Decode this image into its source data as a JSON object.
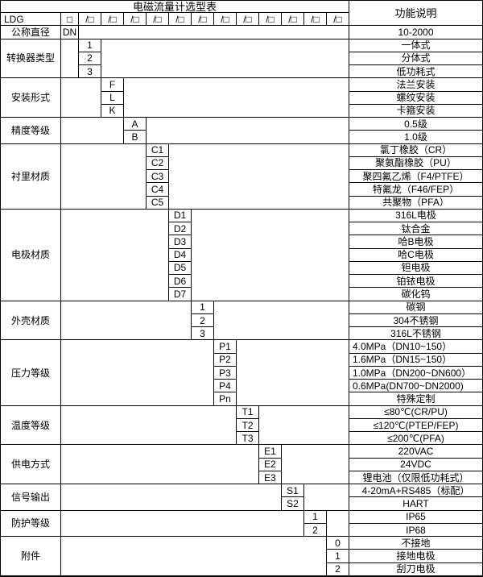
{
  "table": {
    "title": "电磁流量计选型表",
    "function_header": "功能说明",
    "model_row": {
      "prefix": "LDG",
      "digit_box": "□",
      "code_boxes": [
        "/□",
        "/□",
        "/□",
        "/□",
        "/□",
        "/□",
        "/□",
        "/□",
        "/□",
        "/□",
        "/□",
        "/□"
      ]
    },
    "diameter_row": {
      "label": "公称直径",
      "code": "DN",
      "function": "10-2000"
    },
    "blocks": [
      {
        "label": "转换器类型",
        "codes": [
          "1",
          "2",
          "3"
        ],
        "functions": [
          "一体式",
          "分体式",
          "低功耗式"
        ]
      },
      {
        "label": "安装形式",
        "codes": [
          "F",
          "L",
          "K"
        ],
        "functions": [
          "法兰安装",
          "螺纹安装",
          "卡箍安装"
        ]
      },
      {
        "label": "精度等级",
        "codes": [
          "A",
          "B"
        ],
        "functions": [
          "0.5级",
          "1.0级"
        ]
      },
      {
        "label": "衬里材质",
        "codes": [
          "C1",
          "C2",
          "C3",
          "C4",
          "C5"
        ],
        "functions": [
          "氯丁橡胶（CR）",
          "聚氨酯橡胶（PU）",
          "聚四氟乙烯（F4/PTFE）",
          "特氟龙（F46/FEP）",
          "共聚物（PFA）"
        ]
      },
      {
        "label": "电极材质",
        "codes": [
          "D1",
          "D2",
          "D3",
          "D4",
          "D5",
          "D6",
          "D7"
        ],
        "functions": [
          "316L电极",
          "钛合金",
          "哈B电极",
          "哈C电极",
          "钽电极",
          "铂铱电极",
          "碳化钨"
        ]
      },
      {
        "label": "外壳材质",
        "codes": [
          "1",
          "2",
          "3"
        ],
        "functions": [
          "碳钢",
          "304不锈钢",
          "316L不锈钢"
        ]
      },
      {
        "label": "压力等级",
        "codes": [
          "P1",
          "P2",
          "P3",
          "P4",
          "Pn"
        ],
        "functions": [
          "4.0MPa（DN10~150）",
          "1.6MPa（DN15~150）",
          "1.0MPa（DN200~DN600）",
          "0.6MPa(DN700~DN2000)",
          "特殊定制"
        ],
        "left_align": [
          true,
          true,
          true,
          true,
          false
        ]
      },
      {
        "label": "温度等级",
        "codes": [
          "T1",
          "T2",
          "T3"
        ],
        "functions": [
          "≤80℃(CR/PU)",
          "≤120℃(PTEP/FEP)",
          "≤200℃(PFA)"
        ]
      },
      {
        "label": "供电方式",
        "codes": [
          "E1",
          "E2",
          "E3"
        ],
        "functions": [
          "220VAC",
          "24VDC",
          "锂电池（仅限低功耗式）"
        ]
      },
      {
        "label": "信号输出",
        "codes": [
          "S1",
          "S2"
        ],
        "functions": [
          "4-20mA+RS485（标配）",
          "HART"
        ]
      },
      {
        "label": "防护等级",
        "codes": [
          "1",
          "2"
        ],
        "functions": [
          "IP65",
          "IP68"
        ]
      },
      {
        "label": "附件",
        "codes": [
          "0",
          "1",
          "2"
        ],
        "functions": [
          "不接地",
          "接地电极",
          "刮刀电极"
        ]
      }
    ]
  }
}
